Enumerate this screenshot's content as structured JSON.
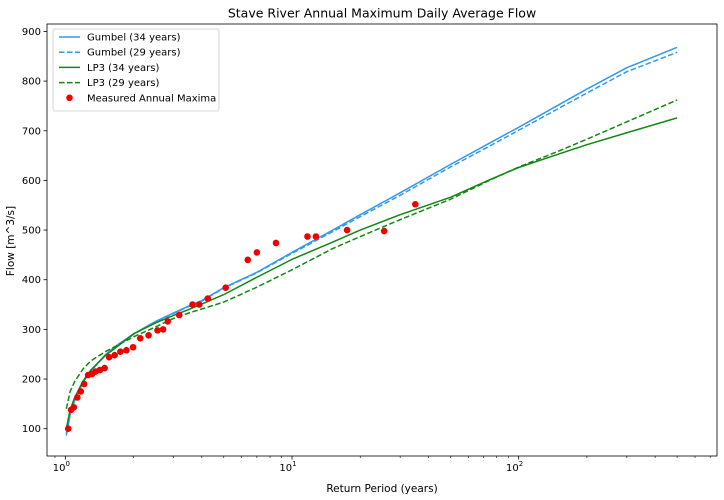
{
  "chart_data": {
    "type": "line",
    "title": "Stave River Annual Maximum Daily Average Flow",
    "xlabel": "Return Period (years)",
    "ylabel": "Flow [m^3/s]",
    "xscale": "log",
    "xlim": [
      0.83,
      750
    ],
    "ylim": [
      45,
      915
    ],
    "yticks": [
      100,
      200,
      300,
      400,
      500,
      600,
      700,
      800,
      900
    ],
    "xticks": [
      {
        "value": 1,
        "mantissa": "10",
        "exp": "0"
      },
      {
        "value": 10,
        "mantissa": "10",
        "exp": "1"
      },
      {
        "value": 100,
        "mantissa": "10",
        "exp": "2"
      }
    ],
    "grid": false,
    "legend_position": "top-left",
    "series": [
      {
        "name": "Gumbel (34 years)",
        "color": "#3399ee",
        "style": "solid",
        "x": [
          1.01,
          1.05,
          1.1,
          1.2,
          1.3,
          1.5,
          1.7,
          2,
          2.5,
          3,
          3.5,
          4,
          5,
          7,
          10,
          15,
          20,
          30,
          50,
          75,
          100,
          150,
          200,
          300,
          500
        ],
        "y": [
          86,
          128,
          157,
          194,
          217,
          249,
          269,
          291,
          316,
          333,
          347,
          358,
          384,
          415,
          455,
          499,
          531,
          575,
          632,
          676,
          707,
          752,
          784,
          827,
          868
        ]
      },
      {
        "name": "Gumbel (29 years)",
        "color": "#3399ee",
        "style": "dashed",
        "x": [
          1.01,
          1.05,
          1.1,
          1.2,
          1.3,
          1.5,
          1.7,
          2,
          2.5,
          3,
          3.5,
          4,
          5,
          7,
          10,
          15,
          20,
          30,
          50,
          75,
          100,
          150,
          200,
          300,
          500
        ],
        "y": [
          90,
          130,
          159,
          195,
          217,
          248,
          268,
          290,
          315,
          332,
          346,
          357,
          383,
          414,
          453,
          496,
          527,
          570,
          627,
          670,
          701,
          745,
          776,
          819,
          858
        ]
      },
      {
        "name": "LP3 (34 years)",
        "color": "#118811",
        "style": "solid",
        "x": [
          1.01,
          1.05,
          1.1,
          1.2,
          1.3,
          1.5,
          1.7,
          2,
          2.5,
          3,
          3.5,
          4,
          5,
          7,
          10,
          15,
          20,
          30,
          50,
          75,
          100,
          150,
          200,
          300,
          500
        ],
        "y": [
          100,
          138,
          163,
          197,
          219,
          247,
          266,
          291,
          313,
          328,
          340,
          351,
          370,
          405,
          441,
          475,
          500,
          531,
          566,
          602,
          626,
          653,
          672,
          696,
          726
        ]
      },
      {
        "name": "LP3 (29 years)",
        "color": "#118811",
        "style": "dashed",
        "x": [
          1.01,
          1.05,
          1.1,
          1.2,
          1.3,
          1.5,
          1.7,
          2,
          2.5,
          3,
          3.5,
          4,
          5,
          7,
          10,
          15,
          20,
          30,
          50,
          75,
          100,
          150,
          200,
          300,
          500
        ],
        "y": [
          140,
          175,
          195,
          221,
          237,
          255,
          268,
          285,
          305,
          322,
          333,
          341,
          355,
          385,
          420,
          462,
          487,
          521,
          562,
          601,
          627,
          659,
          683,
          718,
          762
        ]
      }
    ],
    "scatter": {
      "name": "Measured Annual Maxima",
      "color": "#ee0000",
      "x": [
        1.03,
        1.06,
        1.09,
        1.13,
        1.17,
        1.21,
        1.26,
        1.31,
        1.36,
        1.42,
        1.49,
        1.56,
        1.65,
        1.75,
        1.86,
        1.99,
        2.14,
        2.33,
        2.55,
        2.83,
        3.18,
        3.64,
        4.25,
        5.1,
        6.38,
        8.5,
        12.75,
        25.5,
        35,
        17.5,
        11.7,
        7.0,
        3.9,
        2.7
      ],
      "y": [
        100,
        138,
        143,
        163,
        175,
        190,
        208,
        210,
        215,
        218,
        222,
        244,
        248,
        255,
        258,
        264,
        282,
        288,
        298,
        316,
        329,
        350,
        362,
        384,
        440,
        474,
        487,
        498,
        552,
        500,
        487,
        455,
        350,
        300
      ]
    }
  }
}
